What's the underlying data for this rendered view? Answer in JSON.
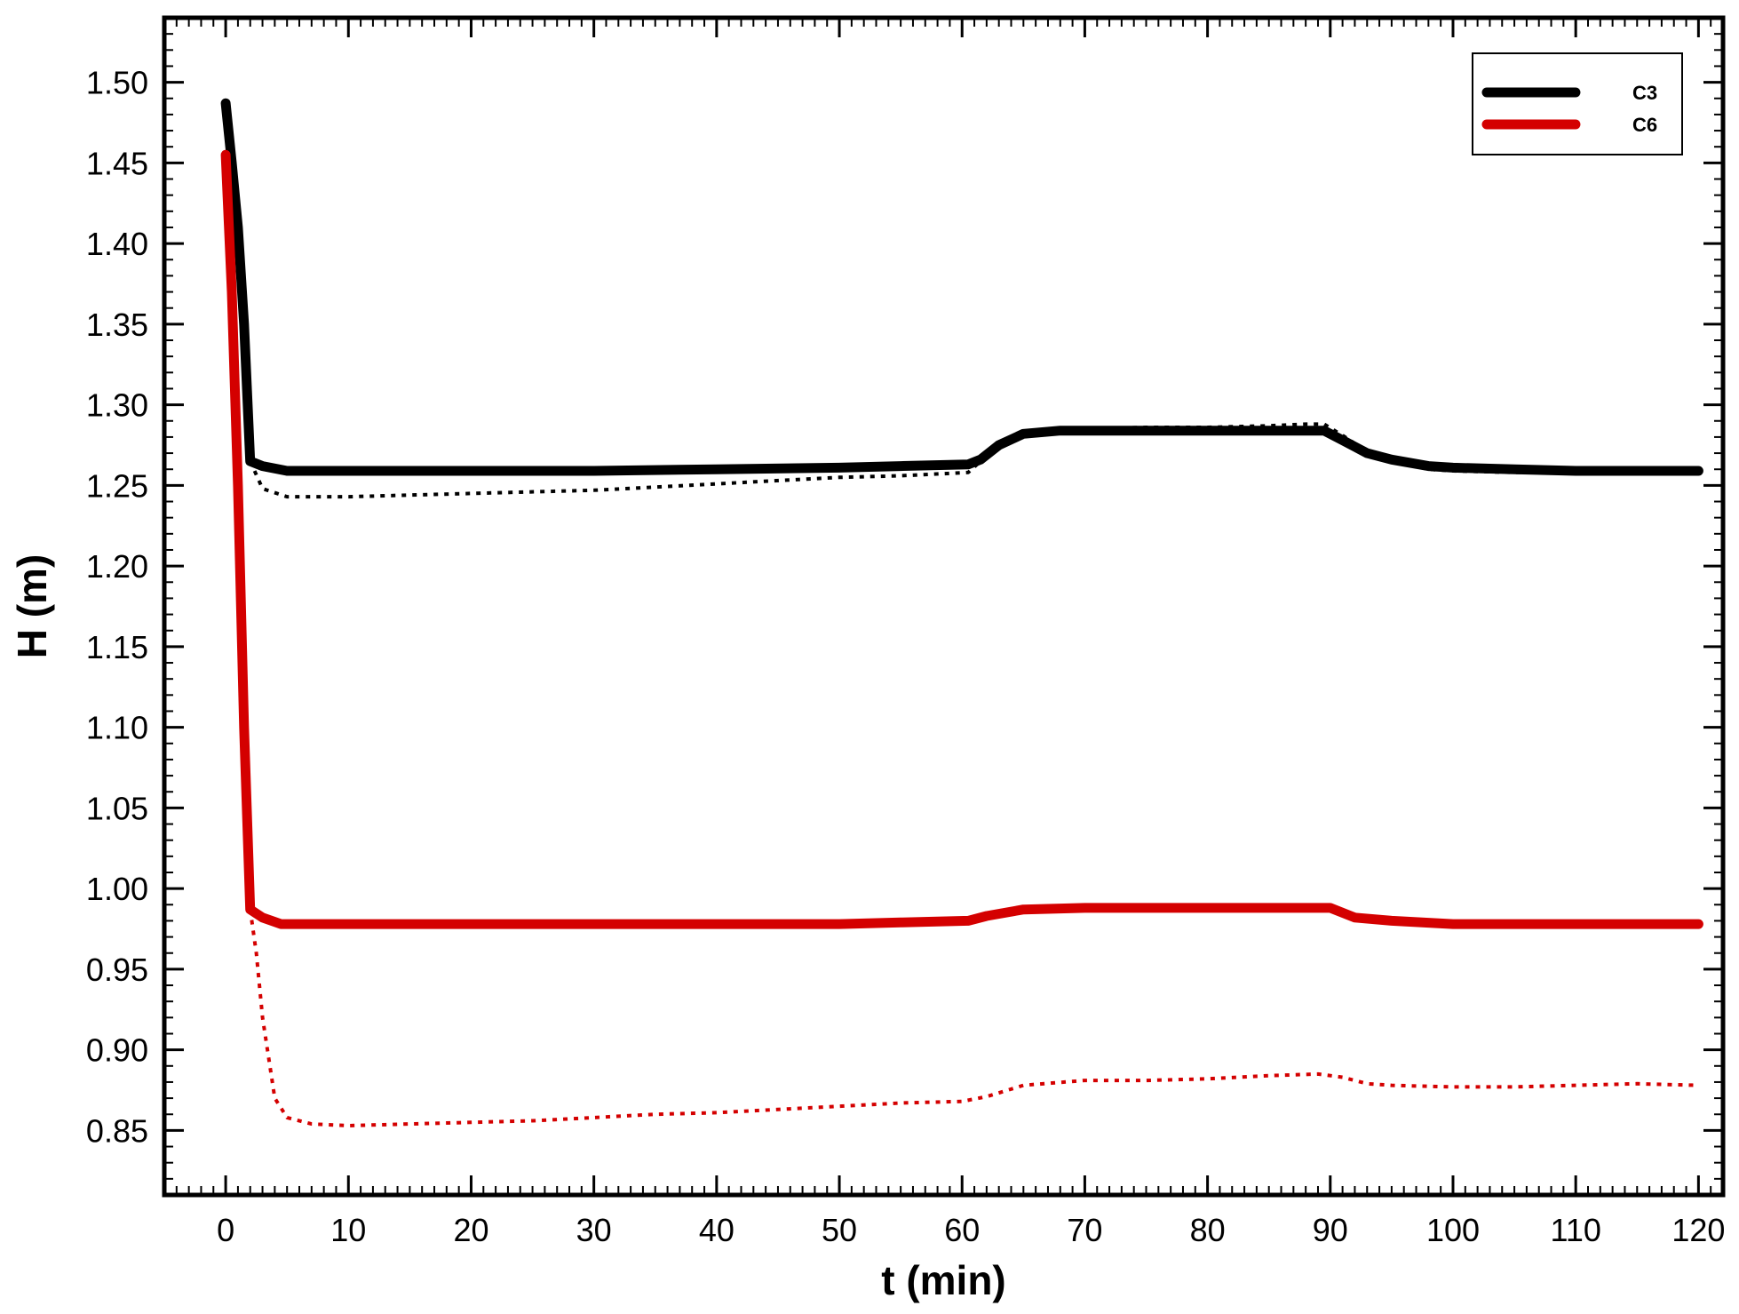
{
  "chart_data": {
    "type": "line",
    "title": "",
    "xlabel": "t (min)",
    "ylabel": "H (m)",
    "xlim": [
      -5,
      122
    ],
    "ylim": [
      0.81,
      1.54
    ],
    "x_ticks": [
      "0",
      "10",
      "20",
      "30",
      "40",
      "50",
      "60",
      "70",
      "80",
      "90",
      "100",
      "110",
      "120"
    ],
    "y_ticks": [
      "0.85",
      "0.90",
      "0.95",
      "1.00",
      "1.05",
      "1.10",
      "1.15",
      "1.20",
      "1.25",
      "1.30",
      "1.35",
      "1.40",
      "1.45",
      "1.50"
    ],
    "grid": false,
    "legend_position": "top-right",
    "legend": [
      "C3",
      "C6"
    ],
    "series": [
      {
        "name": "C3",
        "style": "solid",
        "color": "#000000",
        "points": [
          [
            0,
            1.487
          ],
          [
            0.5,
            1.45
          ],
          [
            1,
            1.41
          ],
          [
            1.5,
            1.35
          ],
          [
            2,
            1.265
          ],
          [
            3,
            1.262
          ],
          [
            5,
            1.259
          ],
          [
            10,
            1.259
          ],
          [
            20,
            1.259
          ],
          [
            30,
            1.259
          ],
          [
            40,
            1.26
          ],
          [
            50,
            1.261
          ],
          [
            55,
            1.262
          ],
          [
            60.5,
            1.263
          ],
          [
            61.5,
            1.266
          ],
          [
            63,
            1.275
          ],
          [
            65,
            1.282
          ],
          [
            68,
            1.284
          ],
          [
            75,
            1.284
          ],
          [
            80,
            1.284
          ],
          [
            85,
            1.284
          ],
          [
            89.5,
            1.284
          ],
          [
            91,
            1.278
          ],
          [
            93,
            1.27
          ],
          [
            95,
            1.266
          ],
          [
            98,
            1.262
          ],
          [
            100,
            1.261
          ],
          [
            105,
            1.26
          ],
          [
            110,
            1.259
          ],
          [
            115,
            1.259
          ],
          [
            120,
            1.259
          ]
        ]
      },
      {
        "style": "dotted",
        "color": "#000000",
        "points": [
          [
            2,
            1.265
          ],
          [
            3,
            1.248
          ],
          [
            5,
            1.243
          ],
          [
            10,
            1.243
          ],
          [
            20,
            1.245
          ],
          [
            30,
            1.247
          ],
          [
            40,
            1.251
          ],
          [
            50,
            1.255
          ],
          [
            55,
            1.256
          ],
          [
            60.5,
            1.258
          ],
          [
            61.5,
            1.265
          ],
          [
            63,
            1.277
          ],
          [
            65,
            1.283
          ],
          [
            70,
            1.285
          ],
          [
            75,
            1.286
          ],
          [
            80,
            1.286
          ],
          [
            85,
            1.287
          ],
          [
            88,
            1.288
          ],
          [
            89.5,
            1.288
          ],
          [
            91,
            1.281
          ],
          [
            93,
            1.271
          ],
          [
            95,
            1.265
          ],
          [
            98,
            1.26
          ],
          [
            100,
            1.259
          ],
          [
            105,
            1.258
          ],
          [
            110,
            1.258
          ],
          [
            115,
            1.258
          ],
          [
            120,
            1.258
          ]
        ]
      },
      {
        "name": "C6",
        "style": "solid",
        "color": "#d40000",
        "points": [
          [
            0,
            1.455
          ],
          [
            0.5,
            1.37
          ],
          [
            1,
            1.25
          ],
          [
            1.5,
            1.1
          ],
          [
            2,
            0.987
          ],
          [
            3,
            0.982
          ],
          [
            4.5,
            0.978
          ],
          [
            10,
            0.978
          ],
          [
            20,
            0.978
          ],
          [
            30,
            0.978
          ],
          [
            40,
            0.978
          ],
          [
            50,
            0.978
          ],
          [
            55,
            0.979
          ],
          [
            60.5,
            0.98
          ],
          [
            62,
            0.983
          ],
          [
            65,
            0.987
          ],
          [
            70,
            0.988
          ],
          [
            80,
            0.988
          ],
          [
            90,
            0.988
          ],
          [
            92,
            0.982
          ],
          [
            95,
            0.98
          ],
          [
            100,
            0.978
          ],
          [
            110,
            0.978
          ],
          [
            120,
            0.978
          ]
        ]
      },
      {
        "style": "dotted",
        "color": "#d40000",
        "points": [
          [
            2,
            0.987
          ],
          [
            2.5,
            0.96
          ],
          [
            3,
            0.92
          ],
          [
            4,
            0.87
          ],
          [
            5,
            0.858
          ],
          [
            7,
            0.854
          ],
          [
            10,
            0.853
          ],
          [
            15,
            0.854
          ],
          [
            20,
            0.855
          ],
          [
            25,
            0.856
          ],
          [
            30,
            0.858
          ],
          [
            35,
            0.86
          ],
          [
            40,
            0.861
          ],
          [
            45,
            0.863
          ],
          [
            50,
            0.865
          ],
          [
            55,
            0.867
          ],
          [
            60,
            0.868
          ],
          [
            62,
            0.871
          ],
          [
            65,
            0.878
          ],
          [
            70,
            0.881
          ],
          [
            75,
            0.881
          ],
          [
            80,
            0.882
          ],
          [
            85,
            0.884
          ],
          [
            89,
            0.885
          ],
          [
            91,
            0.883
          ],
          [
            93,
            0.879
          ],
          [
            95,
            0.878
          ],
          [
            100,
            0.877
          ],
          [
            105,
            0.877
          ],
          [
            110,
            0.878
          ],
          [
            115,
            0.879
          ],
          [
            120,
            0.878
          ]
        ]
      }
    ]
  }
}
